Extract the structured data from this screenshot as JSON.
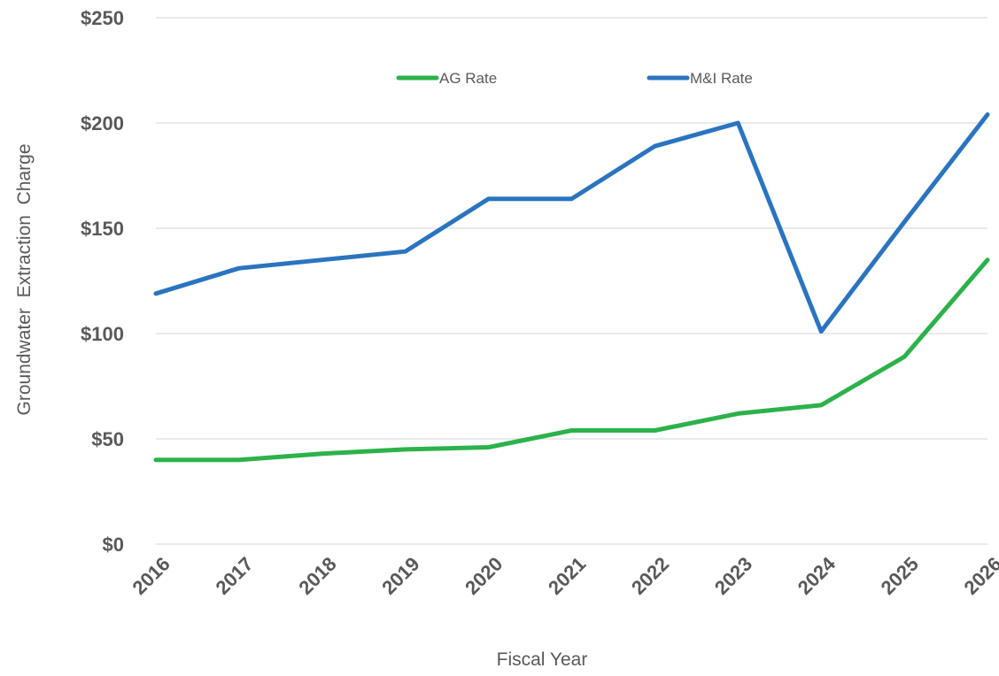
{
  "chart_data": {
    "type": "line",
    "title": "",
    "xlabel": "Fiscal Year",
    "ylabel": "Groundwater  Extraction  Charge",
    "categories": [
      "2016",
      "2017",
      "2018",
      "2019",
      "2020",
      "2021",
      "2022",
      "2023",
      "2024",
      "2025",
      "2026"
    ],
    "y_ticks": [
      0,
      50,
      100,
      150,
      200,
      250
    ],
    "y_tick_labels": [
      "$0",
      "$50",
      "$100",
      "$150",
      "$200",
      "$250"
    ],
    "ylim": [
      0,
      250
    ],
    "grid": true,
    "legend_position": "top",
    "series": [
      {
        "name": "AG Rate",
        "color": "#2cb24a",
        "values": [
          40,
          40,
          43,
          45,
          46,
          54,
          54,
          62,
          66,
          89,
          135
        ]
      },
      {
        "name": "M&I Rate",
        "color": "#2a74c0",
        "values": [
          119,
          131,
          135,
          139,
          164,
          164,
          189,
          200,
          101,
          153,
          204
        ]
      }
    ]
  }
}
